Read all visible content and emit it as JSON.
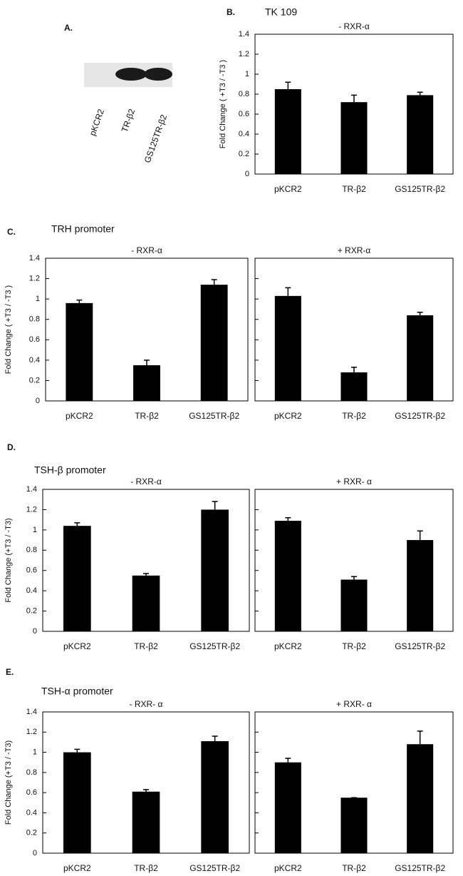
{
  "blot": {
    "label": "A.",
    "lanes": [
      "pKCR2",
      "TR-β2",
      "GS125TR-β2"
    ]
  },
  "panels": [
    {
      "label": "B.",
      "title": "TK 109"
    },
    {
      "label": "C.",
      "title": "TRH promoter"
    },
    {
      "label": "D.",
      "title": "TSH-β promoter"
    },
    {
      "label": "E.",
      "title": "TSH-α promoter"
    }
  ],
  "chart_data": [
    {
      "type": "bar",
      "subtitle": "- RXR-α",
      "ylabel": "Fold Change ( +T3 / -T3 )",
      "categories": [
        "pKCR2",
        "TR-β2",
        "GS125TR-β2"
      ],
      "values": [
        0.85,
        0.72,
        0.79
      ],
      "errors": [
        0.07,
        0.07,
        0.03
      ],
      "color": "#000000",
      "ylim": [
        0,
        1.4
      ],
      "yticks": [
        0,
        0.2,
        0.4,
        0.6,
        0.8,
        1,
        1.2,
        1.4
      ],
      "show_ytick_labels": true
    },
    {
      "type": "bar",
      "subtitle": "- RXR-α",
      "ylabel": "Fold Change ( +T3 / -T3 )",
      "categories": [
        "pKCR2",
        "TR-β2",
        "GS125TR-β2"
      ],
      "values": [
        0.96,
        0.35,
        1.14
      ],
      "errors": [
        0.03,
        0.05,
        0.05
      ],
      "color": "#000000",
      "ylim": [
        0,
        1.4
      ],
      "yticks": [
        0,
        0.2,
        0.4,
        0.6,
        0.8,
        1,
        1.2,
        1.4
      ],
      "show_ytick_labels": true
    },
    {
      "type": "bar",
      "subtitle": "+ RXR-α",
      "categories": [
        "pKCR2",
        "TR-β2",
        "GS125TR-β2"
      ],
      "values": [
        1.03,
        0.28,
        0.84
      ],
      "errors": [
        0.08,
        0.05,
        0.03
      ],
      "color": "#000000",
      "ylim": [
        0,
        1.4
      ],
      "yticks": [
        0,
        0.2,
        0.4,
        0.6,
        0.8,
        1,
        1.2,
        1.4
      ],
      "show_ytick_labels": false
    },
    {
      "type": "bar",
      "subtitle": "- RXR-α",
      "ylabel": "Fold Change (+T3 / -T3)",
      "categories": [
        "pKCR2",
        "TR-β2",
        "GS125TR-β2"
      ],
      "values": [
        1.04,
        0.55,
        1.2
      ],
      "errors": [
        0.03,
        0.02,
        0.08
      ],
      "color": "#000000",
      "ylim": [
        0,
        1.4
      ],
      "yticks": [
        0,
        0.2,
        0.4,
        0.6,
        0.8,
        1,
        1.2,
        1.4
      ],
      "show_ytick_labels": true
    },
    {
      "type": "bar",
      "subtitle": "+ RXR- α",
      "categories": [
        "pKCR2",
        "TR-β2",
        "GS125TR-β2"
      ],
      "values": [
        1.09,
        0.51,
        0.9
      ],
      "errors": [
        0.03,
        0.03,
        0.09
      ],
      "color": "#000000",
      "ylim": [
        0,
        1.4
      ],
      "yticks": [
        0,
        0.2,
        0.4,
        0.6,
        0.8,
        1,
        1.2,
        1.4
      ],
      "show_ytick_labels": false
    },
    {
      "type": "bar",
      "subtitle": "- RXR- α",
      "ylabel": "Fold Change (+T3 / -T3)",
      "categories": [
        "pKCR2",
        "TR-β2",
        "GS125TR-β2"
      ],
      "values": [
        1,
        0.61,
        1.11
      ],
      "errors": [
        0.03,
        0.02,
        0.05
      ],
      "color": "#000000",
      "ylim": [
        0,
        1.4
      ],
      "yticks": [
        0,
        0.2,
        0.4,
        0.6,
        0.8,
        1,
        1.2,
        1.4
      ],
      "show_ytick_labels": true
    },
    {
      "type": "bar",
      "subtitle": "+ RXR- α",
      "categories": [
        "pKCR2",
        "TR-β2",
        "GS125TR-β2"
      ],
      "values": [
        0.9,
        0.55,
        1.08
      ],
      "errors": [
        0.04,
        0,
        0.13
      ],
      "color": "#000000",
      "ylim": [
        0,
        1.4
      ],
      "yticks": [
        0,
        0.2,
        0.4,
        0.6,
        0.8,
        1,
        1.2,
        1.4
      ],
      "show_ytick_labels": false
    }
  ]
}
